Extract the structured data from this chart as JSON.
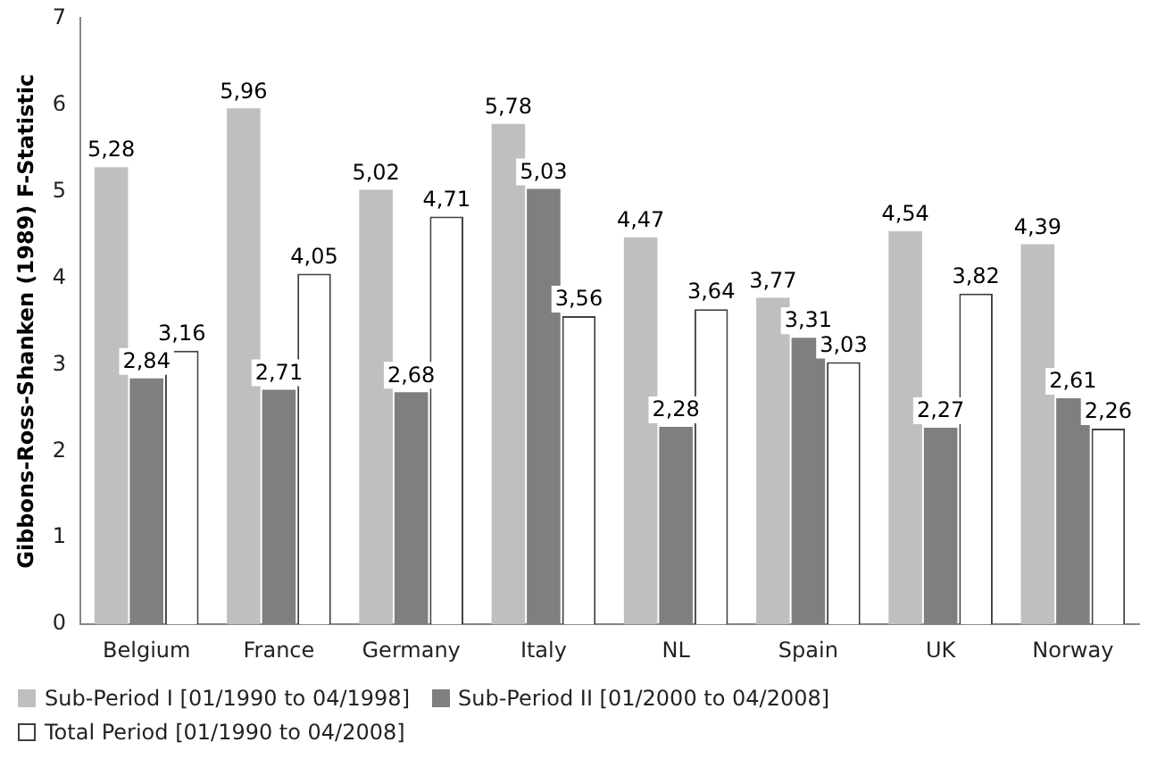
{
  "chart_data": {
    "type": "bar",
    "ylabel": "Gibbons-Ross-Shanken (1989) F-Statistic",
    "categories": [
      "Belgium",
      "France",
      "Germany",
      "Italy",
      "NL",
      "Spain",
      "UK",
      "Norway"
    ],
    "series": [
      {
        "name": "Sub-Period I [01/1990 to 04/1998]",
        "color": "#bfbfbf",
        "values": [
          5.28,
          5.96,
          5.02,
          5.78,
          4.47,
          3.77,
          4.54,
          4.39
        ],
        "value_labels": [
          "5,28",
          "5,96",
          "5,02",
          "5,78",
          "4,47",
          "3,77",
          "4,54",
          "4,39"
        ]
      },
      {
        "name": "Sub-Period II [01/2000 to 04/2008]",
        "color": "#7f7f7f",
        "values": [
          2.84,
          2.71,
          2.68,
          5.03,
          2.28,
          3.31,
          2.27,
          2.61
        ],
        "value_labels": [
          "2,84",
          "2,71",
          "2,68",
          "5,03",
          "2,28",
          "3,31",
          "2,27",
          "2,61"
        ]
      },
      {
        "name": "Total Period [01/1990 to 04/2008]",
        "color": "#ffffff",
        "values": [
          3.16,
          4.05,
          4.71,
          3.56,
          3.64,
          3.03,
          3.82,
          2.26
        ],
        "value_labels": [
          "3,16",
          "4,05",
          "4,71",
          "3,56",
          "3,64",
          "3,03",
          "3,82",
          "2,26"
        ]
      }
    ],
    "ylim": [
      0,
      7
    ],
    "yticks": [
      0,
      1,
      2,
      3,
      4,
      5,
      6,
      7
    ],
    "grid": false,
    "legend": "bottom"
  }
}
